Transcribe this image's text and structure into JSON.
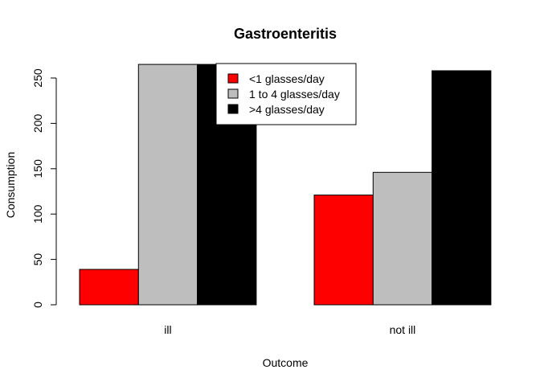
{
  "chart_data": {
    "type": "bar",
    "title": "Gastroenteritis",
    "xlabel": "Outcome",
    "ylabel": "Consumption",
    "categories": [
      "ill",
      "not ill"
    ],
    "series": [
      {
        "name": "<1 glasses/day",
        "values": [
          39,
          121
        ],
        "color": "#ff0000"
      },
      {
        "name": "1 to 4 glasses/day",
        "values": [
          265,
          146
        ],
        "color": "#bebebe"
      },
      {
        "name": ">4 glasses/day",
        "values": [
          265,
          258
        ],
        "color": "#000000"
      }
    ],
    "yticks": [
      0,
      50,
      100,
      150,
      200,
      250
    ],
    "ylim": [
      0,
      265
    ],
    "grid": false,
    "legend": "top-center-right",
    "grouped": true
  }
}
